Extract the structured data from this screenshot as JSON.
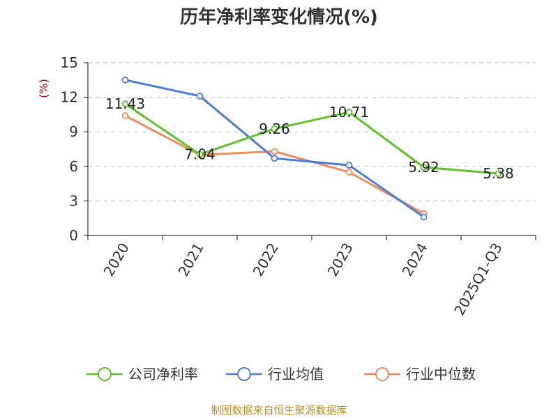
{
  "chart_data": {
    "type": "line",
    "title": "历年净利率变化情况(%)",
    "y_unit": "(%)",
    "categories": [
      "2020",
      "2021",
      "2022",
      "2023",
      "2024",
      "2025Q1-Q3"
    ],
    "yticks": [
      "0",
      "3",
      "6",
      "9",
      "12",
      "15"
    ],
    "ylim": [
      0,
      15
    ],
    "grid": true,
    "legend_position": "bottom",
    "series": [
      {
        "name": "公司净利率",
        "color": "#5dc12a",
        "values": [
          11.43,
          7.04,
          9.26,
          10.71,
          5.92,
          5.38
        ],
        "labels": [
          "11.43",
          "7.04",
          "9.26",
          "10.71",
          "5.92",
          "5.38"
        ]
      },
      {
        "name": "行业均值",
        "color": "#4a7ddb",
        "values": [
          13.5,
          12.1,
          6.7,
          6.1,
          1.6,
          null
        ]
      },
      {
        "name": "行业中位数",
        "color": "#f08c5a",
        "values": [
          10.4,
          7.0,
          7.3,
          5.5,
          1.9,
          null
        ]
      }
    ]
  },
  "source": "制图数据来自恒生聚源数据库"
}
